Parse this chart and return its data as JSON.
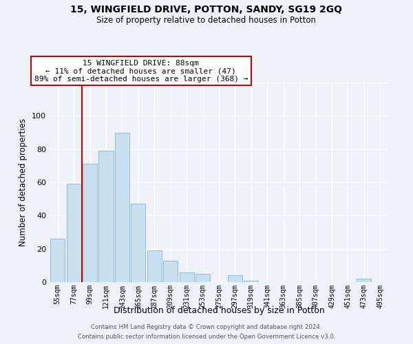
{
  "title": "15, WINGFIELD DRIVE, POTTON, SANDY, SG19 2GQ",
  "subtitle": "Size of property relative to detached houses in Potton",
  "xlabel": "Distribution of detached houses by size in Potton",
  "ylabel": "Number of detached properties",
  "bar_labels": [
    "55sqm",
    "77sqm",
    "99sqm",
    "121sqm",
    "143sqm",
    "165sqm",
    "187sqm",
    "209sqm",
    "231sqm",
    "253sqm",
    "275sqm",
    "297sqm",
    "319sqm",
    "341sqm",
    "363sqm",
    "385sqm",
    "407sqm",
    "429sqm",
    "451sqm",
    "473sqm",
    "495sqm"
  ],
  "bar_heights": [
    26,
    59,
    71,
    79,
    90,
    47,
    19,
    13,
    6,
    5,
    0,
    4,
    1,
    0,
    0,
    0,
    0,
    0,
    0,
    2,
    0
  ],
  "bar_color": "#c8dff0",
  "bar_edge_color": "#8bbdd9",
  "vline_x_index": 1.5,
  "vline_color": "#cc0000",
  "ylim": [
    0,
    120
  ],
  "yticks": [
    0,
    20,
    40,
    60,
    80,
    100,
    120
  ],
  "annotation_text": "15 WINGFIELD DRIVE: 88sqm\n← 11% of detached houses are smaller (47)\n89% of semi-detached houses are larger (368) →",
  "annotation_box_color": "#ffffff",
  "annotation_box_edge_color": "#cc0000",
  "footer_line1": "Contains HM Land Registry data © Crown copyright and database right 2024.",
  "footer_line2": "Contains public sector information licensed under the Open Government Licence v3.0.",
  "background_color": "#eef2f8",
  "grid_color": "#ffffff"
}
